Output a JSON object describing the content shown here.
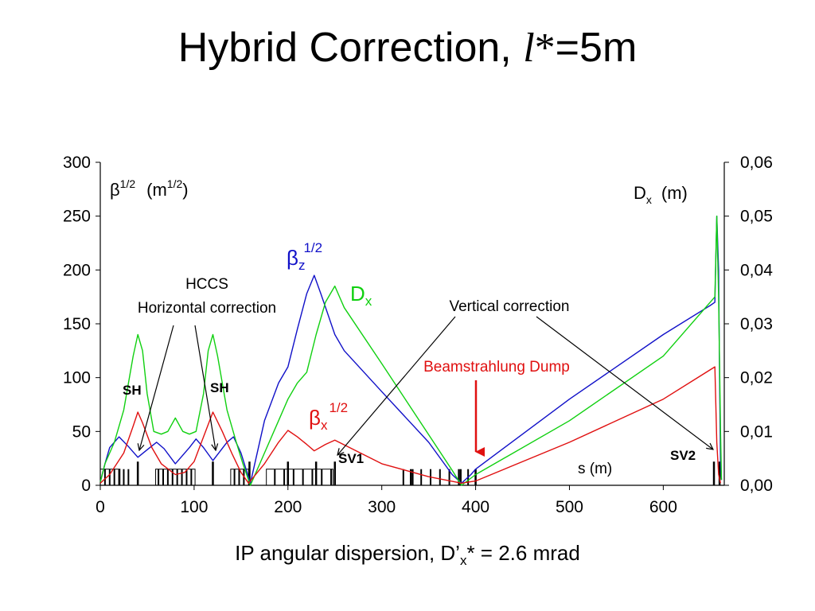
{
  "title": {
    "prefix": "Hybrid Correction, ",
    "italic": "l",
    "star": "*",
    "suffix": "=5m"
  },
  "xlabel": {
    "pre": "IP angular dispersion, D’",
    "sub": "x",
    "post": "* = 2.6 mrad"
  },
  "colors": {
    "beta_z": "#1010c8",
    "d_x": "#10d010",
    "beta_x": "#e01010",
    "dump": "#e01010",
    "text": "#000000"
  },
  "labels": {
    "left_unit": {
      "beta": "β",
      "sup": "1/2",
      "unit": "(m",
      "unit_sup": "1/2",
      "close": ")"
    },
    "right_unit": {
      "d": "D",
      "sub": "x",
      "unit": "(m)"
    },
    "beta_z": {
      "beta": "β",
      "sub": "z",
      "sup": "1/2"
    },
    "d_x": {
      "d": "D",
      "sub": "x"
    },
    "beta_x": {
      "beta": "β",
      "sub": "x",
      "sup": "1/2"
    },
    "hccs": "HCCS",
    "horizontal": "Horizontal correction",
    "vertical": "Vertical correction",
    "dump": "Beamstrahlung Dump",
    "sh1": "SH",
    "sh2": "SH",
    "sv1": "SV1",
    "sv2": "SV2",
    "s_m": "s (m)"
  },
  "chart_data": {
    "type": "line",
    "xlabel": "IP angular dispersion, D’x* = 2.6 mrad",
    "xlim": [
      0,
      665
    ],
    "ylim": [
      0,
      300
    ],
    "y2lim": [
      0,
      0.06
    ],
    "xticks": [
      "0",
      "100",
      "200",
      "300",
      "400",
      "500",
      "600"
    ],
    "xtick_values": [
      0,
      100,
      200,
      300,
      400,
      500,
      600
    ],
    "yticks": [
      "0",
      "50",
      "100",
      "150",
      "200",
      "250",
      "300"
    ],
    "ytick_values": [
      0,
      50,
      100,
      150,
      200,
      250,
      300
    ],
    "y2ticks": [
      "0,00",
      "0,01",
      "0,02",
      "0,03",
      "0,04",
      "0,05",
      "0,06"
    ],
    "y2tick_values": [
      0,
      0.01,
      0.02,
      0.03,
      0.04,
      0.05,
      0.06
    ],
    "series": [
      {
        "name": "βz 1/2",
        "axis": "left",
        "color": "#1010c8",
        "points": [
          [
            0,
            3
          ],
          [
            5,
            20
          ],
          [
            10,
            35
          ],
          [
            20,
            45
          ],
          [
            30,
            36
          ],
          [
            40,
            26
          ],
          [
            50,
            33
          ],
          [
            60,
            40
          ],
          [
            68,
            34
          ],
          [
            80,
            20
          ],
          [
            95,
            35
          ],
          [
            102,
            43
          ],
          [
            110,
            35
          ],
          [
            120,
            23
          ],
          [
            135,
            40
          ],
          [
            142,
            45
          ],
          [
            150,
            30
          ],
          [
            160,
            2
          ],
          [
            175,
            60
          ],
          [
            190,
            95
          ],
          [
            200,
            110
          ],
          [
            210,
            145
          ],
          [
            220,
            178
          ],
          [
            228,
            195
          ],
          [
            235,
            178
          ],
          [
            250,
            140
          ],
          [
            260,
            125
          ],
          [
            300,
            87
          ],
          [
            350,
            40
          ],
          [
            375,
            10
          ],
          [
            385,
            2
          ],
          [
            395,
            10
          ],
          [
            400,
            15
          ],
          [
            500,
            80
          ],
          [
            600,
            140
          ],
          [
            650,
            167
          ],
          [
            655,
            170
          ],
          [
            657,
            250
          ],
          [
            659,
            200
          ],
          [
            660,
            100
          ],
          [
            661,
            20
          ],
          [
            662,
            5
          ]
        ]
      },
      {
        "name": "Dx",
        "axis": "right",
        "color": "#10d010",
        "points": [
          [
            0,
            0.0006
          ],
          [
            5,
            0.004
          ],
          [
            15,
            0.008
          ],
          [
            25,
            0.014
          ],
          [
            35,
            0.024
          ],
          [
            40,
            0.028
          ],
          [
            45,
            0.025
          ],
          [
            50,
            0.017
          ],
          [
            57,
            0.01
          ],
          [
            65,
            0.0095
          ],
          [
            72,
            0.01
          ],
          [
            80,
            0.0125
          ],
          [
            88,
            0.01
          ],
          [
            95,
            0.0095
          ],
          [
            102,
            0.01
          ],
          [
            110,
            0.017
          ],
          [
            115,
            0.025
          ],
          [
            120,
            0.028
          ],
          [
            125,
            0.024
          ],
          [
            135,
            0.014
          ],
          [
            145,
            0.008
          ],
          [
            152,
            0.004
          ],
          [
            160,
            0.0
          ],
          [
            175,
            0.006
          ],
          [
            190,
            0.012
          ],
          [
            200,
            0.016
          ],
          [
            210,
            0.019
          ],
          [
            220,
            0.021
          ],
          [
            230,
            0.028
          ],
          [
            240,
            0.034
          ],
          [
            250,
            0.037
          ],
          [
            260,
            0.033
          ],
          [
            300,
            0.0226
          ],
          [
            350,
            0.0094
          ],
          [
            375,
            0.0028
          ],
          [
            385,
            0.0
          ],
          [
            400,
            0.002
          ],
          [
            500,
            0.012
          ],
          [
            600,
            0.024
          ],
          [
            650,
            0.034
          ],
          [
            655,
            0.035
          ],
          [
            657,
            0.05
          ],
          [
            659,
            0.035
          ],
          [
            661,
            0.01
          ],
          [
            662,
            0.001
          ]
        ]
      },
      {
        "name": "βx 1/2",
        "axis": "left",
        "color": "#e01010",
        "points": [
          [
            0,
            2
          ],
          [
            10,
            10
          ],
          [
            25,
            30
          ],
          [
            35,
            55
          ],
          [
            40,
            68
          ],
          [
            45,
            58
          ],
          [
            55,
            35
          ],
          [
            65,
            20
          ],
          [
            80,
            10
          ],
          [
            90,
            12
          ],
          [
            100,
            22
          ],
          [
            110,
            45
          ],
          [
            120,
            68
          ],
          [
            130,
            50
          ],
          [
            140,
            30
          ],
          [
            150,
            12
          ],
          [
            158,
            2
          ],
          [
            175,
            20
          ],
          [
            190,
            40
          ],
          [
            200,
            51
          ],
          [
            210,
            45
          ],
          [
            220,
            38
          ],
          [
            228,
            32
          ],
          [
            240,
            38
          ],
          [
            250,
            42
          ],
          [
            300,
            20
          ],
          [
            350,
            8
          ],
          [
            385,
            2
          ],
          [
            400,
            4
          ],
          [
            500,
            40
          ],
          [
            600,
            80
          ],
          [
            655,
            110
          ],
          [
            657,
            40
          ],
          [
            659,
            10
          ],
          [
            661,
            2
          ]
        ]
      }
    ],
    "elements": {
      "height_units": 15,
      "blocks": [
        [
          0,
          21
        ],
        [
          59,
          101
        ],
        [
          139,
          158
        ],
        [
          177,
          248
        ]
      ],
      "short_bars": [
        5,
        10,
        15,
        20,
        25,
        30,
        62,
        67,
        72,
        77,
        82,
        87,
        92,
        97,
        143,
        148,
        153,
        186,
        196,
        206,
        216,
        226,
        236,
        246,
        323,
        333,
        342,
        352,
        362,
        372,
        382,
        392
      ],
      "tall_bars": [
        [
          40,
          22
        ],
        [
          120,
          22
        ],
        [
          159,
          22
        ],
        [
          200,
          22
        ],
        [
          230,
          22
        ],
        [
          250,
          22
        ],
        [
          331,
          15
        ],
        [
          384,
          15
        ],
        [
          400,
          15
        ],
        [
          654,
          22
        ],
        [
          660,
          22
        ]
      ]
    }
  }
}
